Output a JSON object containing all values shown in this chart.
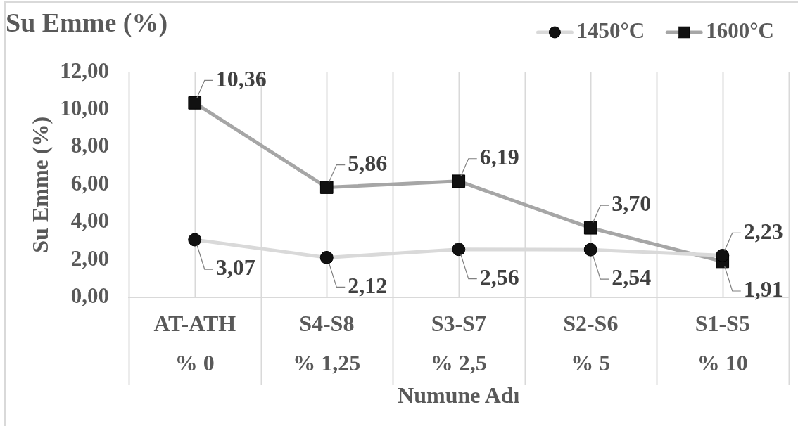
{
  "chart_data": {
    "type": "line",
    "title": "Su Emme (%)",
    "xlabel": "Numune Adı",
    "ylabel": "Su Emme (%)",
    "categories": [
      "AT-ATH\n% 0",
      "S4-S8\n% 1,25",
      "S3-S7\n% 2,5",
      "S2-S6\n% 5",
      "S1-S5\n% 10"
    ],
    "series": [
      {
        "name": "1450°C",
        "color": "#d9d9d9",
        "marker": "circle",
        "values": [
          3.07,
          2.12,
          2.56,
          2.54,
          2.23
        ],
        "value_labels": [
          "3,07",
          "2,12",
          "2,56",
          "2,54",
          "2,23"
        ]
      },
      {
        "name": "1600°C",
        "color": "#a6a6a6",
        "marker": "square",
        "values": [
          10.36,
          5.86,
          6.19,
          3.7,
          1.91
        ],
        "value_labels": [
          "10,36",
          "5,86",
          "6,19",
          "3,70",
          "1,91"
        ]
      }
    ],
    "ylim": [
      0,
      12
    ],
    "yticks": [
      {
        "value": 0,
        "label": "0,00"
      },
      {
        "value": 2,
        "label": "2,00"
      },
      {
        "value": 4,
        "label": "4,00"
      },
      {
        "value": 6,
        "label": "6,00"
      },
      {
        "value": 8,
        "label": "8,00"
      },
      {
        "value": 10,
        "label": "10,00"
      },
      {
        "value": 12,
        "label": "12,00"
      }
    ],
    "grid": "x",
    "legend": "top right",
    "line_style": "solid"
  }
}
